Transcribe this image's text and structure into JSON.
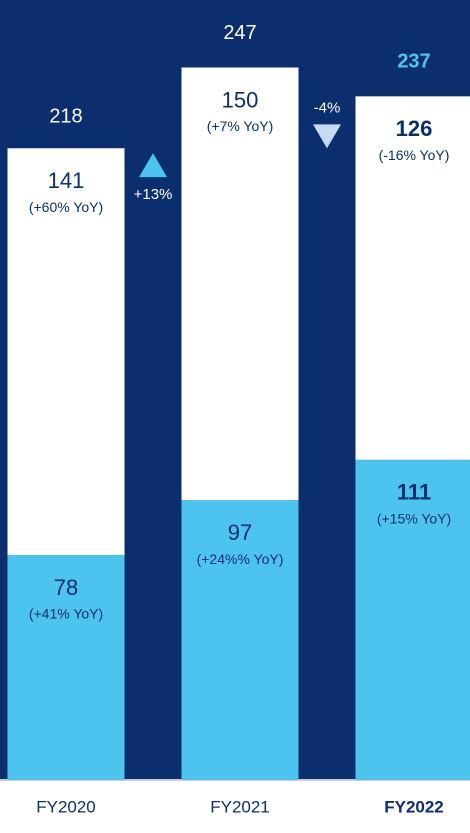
{
  "chart_data": {
    "type": "stacked_bar",
    "categories": [
      "FY2020",
      "FY2021",
      "FY2022"
    ],
    "series": [
      {
        "color": "#4dc3f0",
        "values": [
          78,
          97,
          111
        ],
        "yoy": [
          "(+41% YoY)",
          "(+24%% YoY)",
          "(+15% YoY)"
        ]
      },
      {
        "color": "#ffffff",
        "values": [
          141,
          150,
          126
        ],
        "yoy": [
          "(+60% YoY)",
          "(+7% YoY)",
          "(-16% YoY)"
        ]
      }
    ],
    "totals": [
      218,
      247,
      237
    ],
    "changes": [
      "+13%",
      "-4%"
    ],
    "ylim": [
      0,
      260
    ]
  }
}
